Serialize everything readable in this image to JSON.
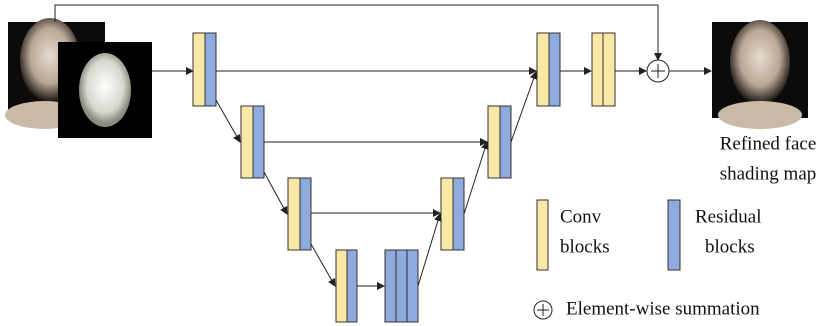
{
  "output_label": [
    "Refined face",
    "shading map"
  ],
  "legend": {
    "conv": [
      "Conv",
      "blocks"
    ],
    "residual": [
      "Residual",
      "blocks"
    ],
    "summation": "Element-wise summation"
  }
}
